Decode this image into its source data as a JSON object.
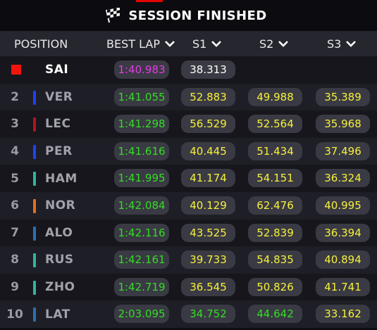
{
  "title": "SESSION FINISHED",
  "colors": {
    "purple": "#e63be6",
    "green": "#33dd22",
    "yellow": "#f5f03a",
    "leader_flag": "#f3150b"
  },
  "columns": {
    "position": "POSITION",
    "best_lap": "BEST LAP",
    "s1": "S1",
    "s2": "S2",
    "s3": "S3"
  },
  "rows": [
    {
      "pos": "",
      "driver": "SAI",
      "team_color": "#e8002d",
      "best_lap": "1:40.983",
      "s1": "38.313",
      "s2": "",
      "s3": ""
    },
    {
      "pos": "2",
      "driver": "VER",
      "team_color": "#1e41ff",
      "best_lap": "1:41.055",
      "s1": "52.883",
      "s2": "49.988",
      "s3": "35.389"
    },
    {
      "pos": "3",
      "driver": "LEC",
      "team_color": "#b5121b",
      "best_lap": "1:41.298",
      "s1": "56.529",
      "s2": "52.564",
      "s3": "35.968"
    },
    {
      "pos": "4",
      "driver": "PER",
      "team_color": "#1e41ff",
      "best_lap": "1:41.616",
      "s1": "40.445",
      "s2": "51.434",
      "s3": "37.496"
    },
    {
      "pos": "5",
      "driver": "HAM",
      "team_color": "#2fb5a0",
      "best_lap": "1:41.995",
      "s1": "41.174",
      "s2": "54.151",
      "s3": "36.324"
    },
    {
      "pos": "6",
      "driver": "NOR",
      "team_color": "#e3701b",
      "best_lap": "1:42.084",
      "s1": "40.129",
      "s2": "62.476",
      "s3": "40.995"
    },
    {
      "pos": "7",
      "driver": "ALO",
      "team_color": "#2d6fb5",
      "best_lap": "1:42.116",
      "s1": "43.525",
      "s2": "52.839",
      "s3": "36.394"
    },
    {
      "pos": "8",
      "driver": "RUS",
      "team_color": "#2fb5a0",
      "best_lap": "1:42.161",
      "s1": "39.733",
      "s2": "54.835",
      "s3": "40.894"
    },
    {
      "pos": "9",
      "driver": "ZHO",
      "team_color": "#2fb5a0",
      "best_lap": "1:42.719",
      "s1": "36.545",
      "s2": "50.826",
      "s3": "41.741"
    },
    {
      "pos": "10",
      "driver": "LAT",
      "team_color": "#2d6fb5",
      "best_lap": "2:03.095",
      "s1": "34.752",
      "s2": "44.642",
      "s3": "33.162"
    }
  ]
}
